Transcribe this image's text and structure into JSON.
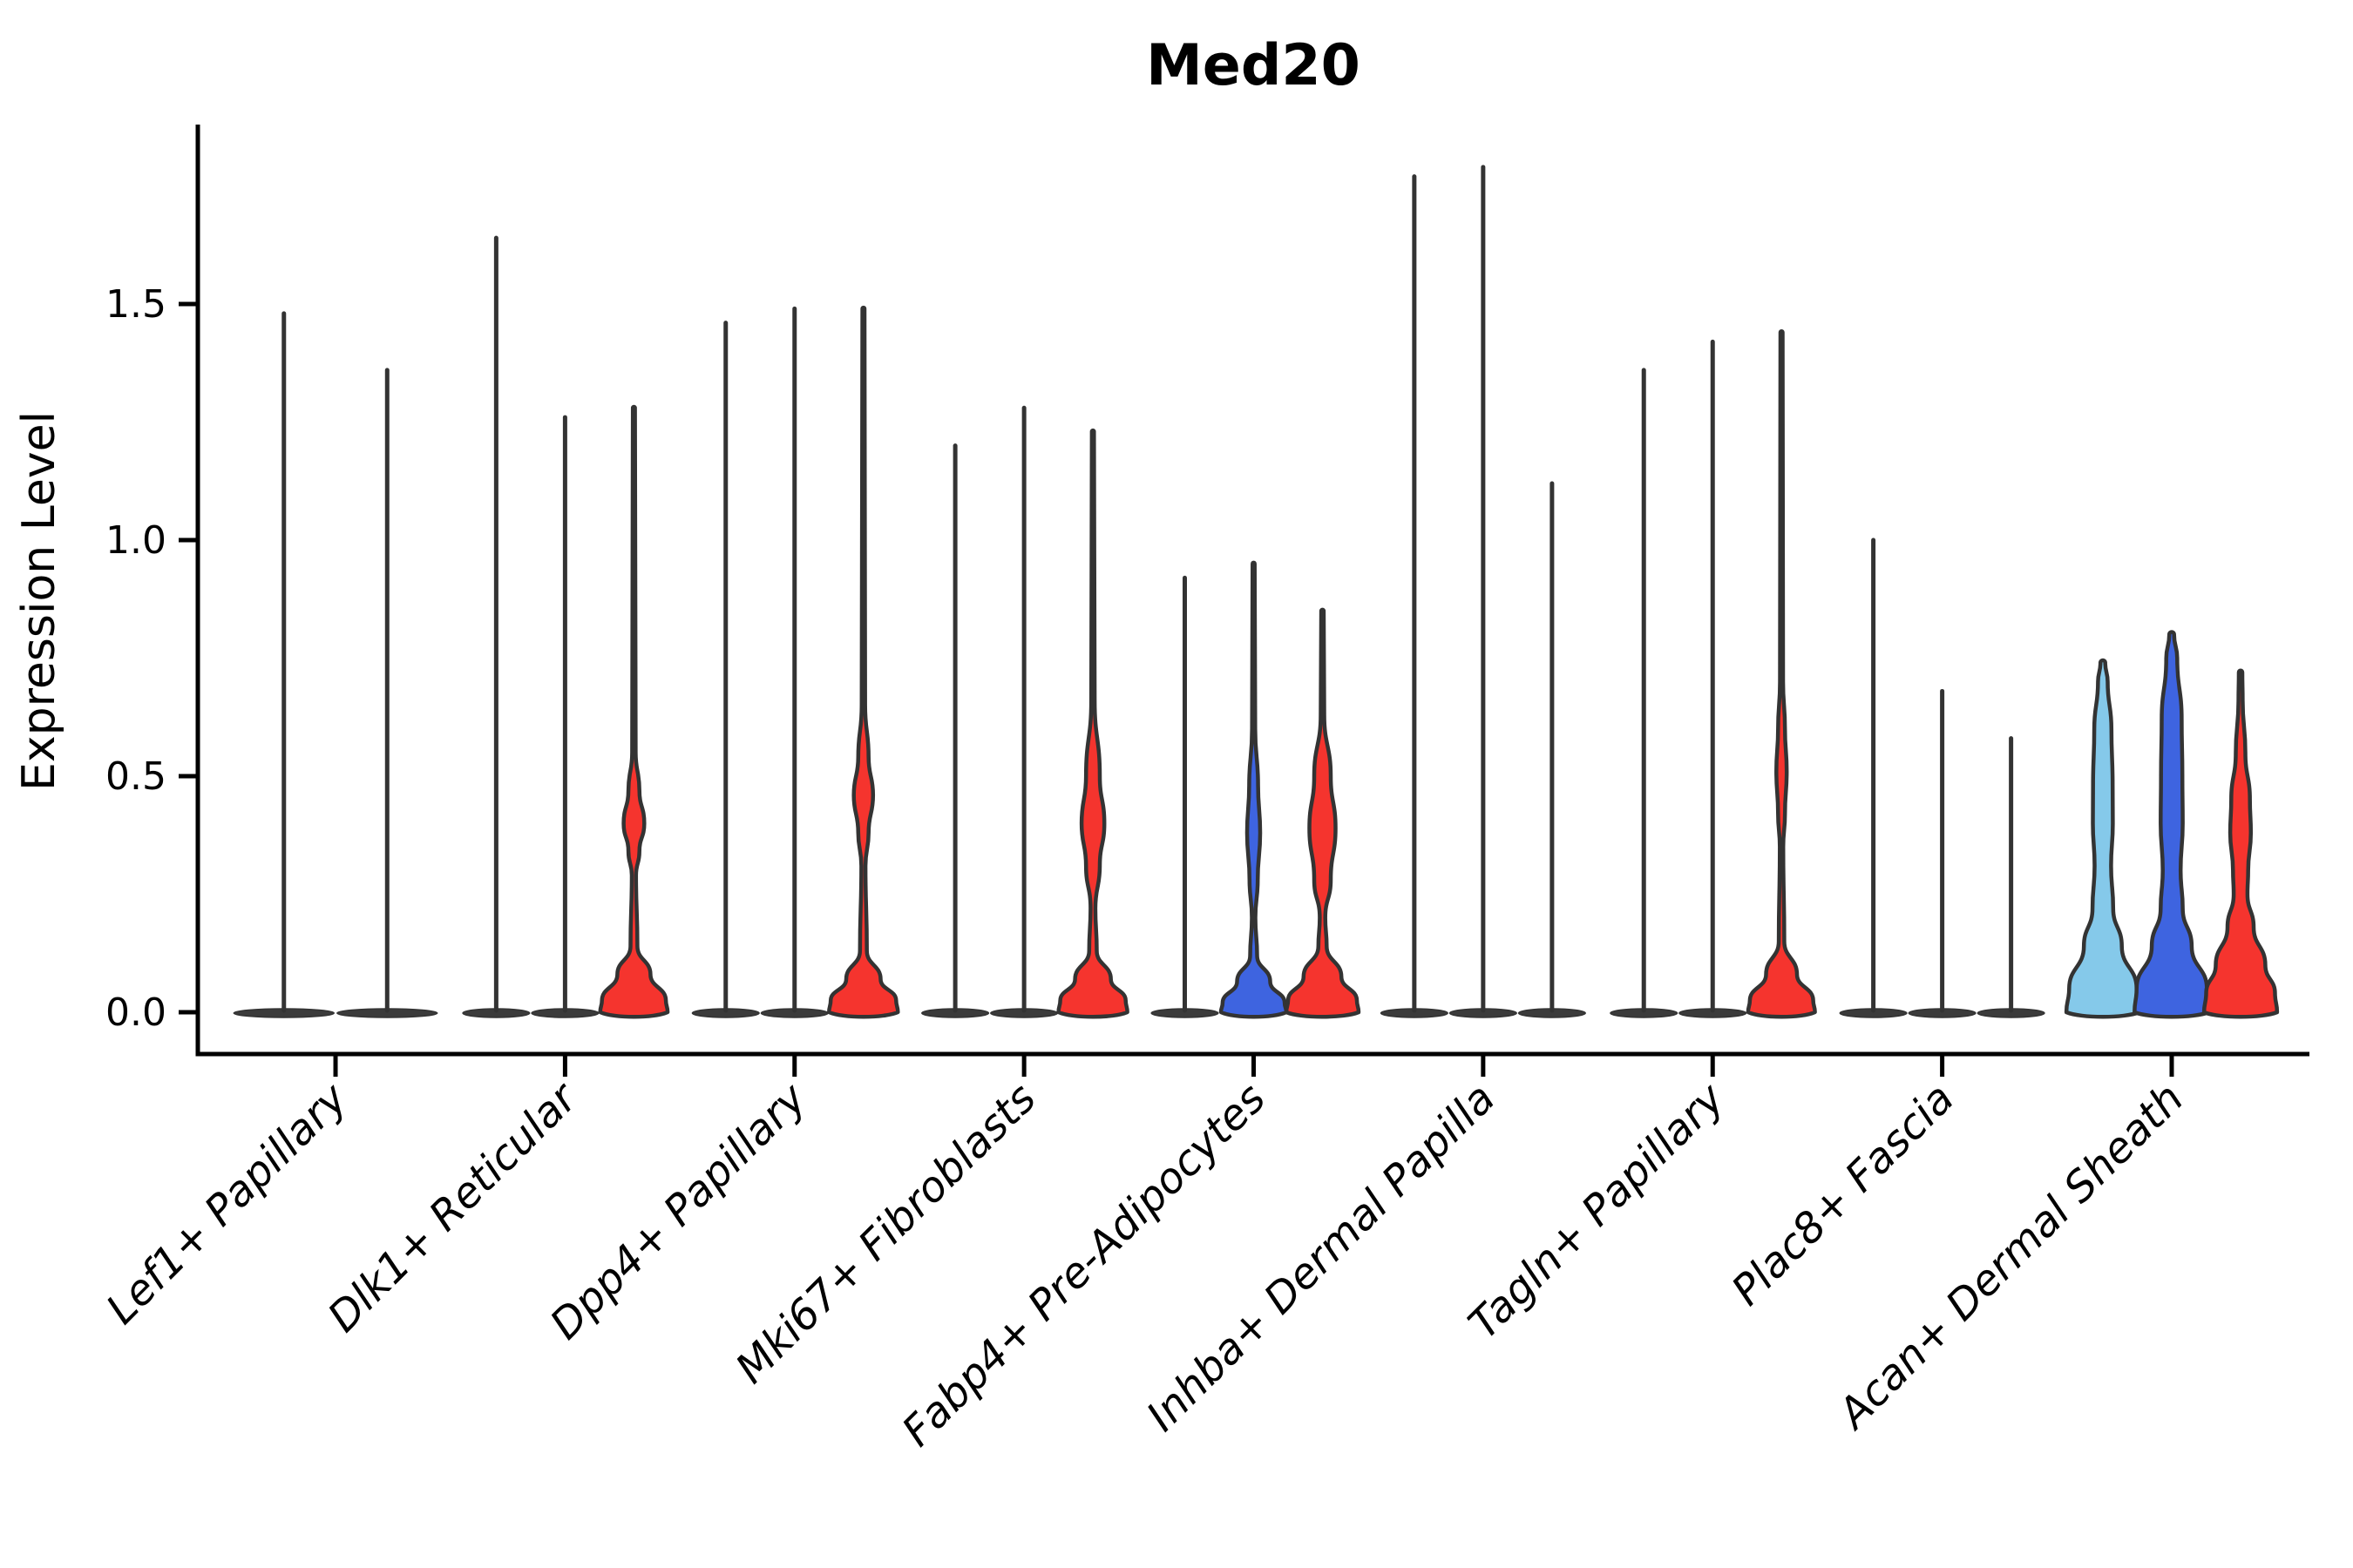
{
  "figure": {
    "title": "Med20",
    "ylabel": "Expression Level"
  },
  "colors": {
    "red": "#F5342E",
    "blue": "#3E64E0",
    "lightblue": "#85C9EA",
    "outline": "#333333",
    "spike": "#333333",
    "pancake": "#3B3B3B",
    "axis": "#000000",
    "background": "#FFFFFF"
  },
  "chart_data": {
    "type": "violin",
    "title": "Med20",
    "ylabel": "Expression Level",
    "xlabel": "",
    "ylim": [
      -0.08,
      1.88
    ],
    "yticks": [
      0.0,
      0.5,
      1.0,
      1.5
    ],
    "ytick_labels": [
      "0.0",
      "0.5",
      "1.0",
      "1.5"
    ],
    "grid": false,
    "legend_position": "none",
    "categories": [
      "Lef1+ Papillary",
      "Dlk1+ Reticular",
      "Dpp4+ Papillary",
      "Mki67+ Fibroblasts",
      "Fabp4+ Pre-Adipocytes",
      "Inhba+ Dermal Papilla",
      "Tagln+ Papillary",
      "Plac8+ Fascia",
      "Acan+ Dermal Sheath"
    ],
    "groups": [
      {
        "category": "Lef1+ Papillary",
        "violins": [
          {
            "fill": "none",
            "kind": "spike",
            "max": 1.48
          },
          {
            "fill": "none",
            "kind": "spike",
            "max": 1.36
          }
        ]
      },
      {
        "category": "Dlk1+ Reticular",
        "violins": [
          {
            "fill": "none",
            "kind": "spike",
            "max": 1.64
          },
          {
            "fill": "none",
            "kind": "spike",
            "max": 1.26
          },
          {
            "fill": "red",
            "kind": "body",
            "max": 1.28,
            "profile": [
              [
                1.28,
                0.03
              ],
              [
                0.55,
                0.05
              ],
              [
                0.47,
                0.16
              ],
              [
                0.4,
                0.3
              ],
              [
                0.34,
                0.16
              ],
              [
                0.29,
                0.06
              ],
              [
                0.14,
                0.1
              ],
              [
                0.08,
                0.48
              ],
              [
                0.025,
                0.93
              ],
              [
                0.0,
                0.98
              ]
            ]
          }
        ]
      },
      {
        "category": "Dpp4+ Papillary",
        "violins": [
          {
            "fill": "none",
            "kind": "spike",
            "max": 1.46
          },
          {
            "fill": "none",
            "kind": "spike",
            "max": 1.49
          },
          {
            "fill": "red",
            "kind": "body",
            "max": 1.49,
            "profile": [
              [
                1.49,
                0.03
              ],
              [
                0.65,
                0.05
              ],
              [
                0.54,
                0.15
              ],
              [
                0.46,
                0.28
              ],
              [
                0.38,
                0.15
              ],
              [
                0.31,
                0.06
              ],
              [
                0.13,
                0.1
              ],
              [
                0.07,
                0.5
              ],
              [
                0.025,
                0.95
              ],
              [
                0.0,
                1.0
              ]
            ]
          }
        ]
      },
      {
        "category": "Mki67+ Fibroblasts",
        "violins": [
          {
            "fill": "none",
            "kind": "spike",
            "max": 1.2
          },
          {
            "fill": "none",
            "kind": "spike",
            "max": 1.28
          },
          {
            "fill": "red",
            "kind": "body",
            "max": 1.23,
            "profile": [
              [
                1.23,
                0.03
              ],
              [
                0.66,
                0.05
              ],
              [
                0.5,
                0.2
              ],
              [
                0.4,
                0.33
              ],
              [
                0.31,
                0.2
              ],
              [
                0.22,
                0.07
              ],
              [
                0.13,
                0.11
              ],
              [
                0.07,
                0.52
              ],
              [
                0.025,
                0.95
              ],
              [
                0.0,
                1.0
              ]
            ]
          }
        ]
      },
      {
        "category": "Fabp4+ Pre-Adipocytes",
        "violins": [
          {
            "fill": "none",
            "kind": "spike",
            "max": 0.92
          },
          {
            "fill": "blue",
            "kind": "body",
            "max": 0.95,
            "profile": [
              [
                0.95,
                0.03
              ],
              [
                0.6,
                0.045
              ],
              [
                0.48,
                0.13
              ],
              [
                0.38,
                0.19
              ],
              [
                0.28,
                0.12
              ],
              [
                0.2,
                0.05
              ],
              [
                0.12,
                0.1
              ],
              [
                0.065,
                0.48
              ],
              [
                0.02,
                0.9
              ],
              [
                0.0,
                0.95
              ]
            ]
          },
          {
            "fill": "red",
            "kind": "body",
            "max": 0.85,
            "profile": [
              [
                0.85,
                0.035
              ],
              [
                0.63,
                0.05
              ],
              [
                0.5,
                0.24
              ],
              [
                0.39,
                0.38
              ],
              [
                0.28,
                0.24
              ],
              [
                0.2,
                0.08
              ],
              [
                0.14,
                0.12
              ],
              [
                0.075,
                0.55
              ],
              [
                0.025,
                1.0
              ],
              [
                0.0,
                1.05
              ]
            ]
          }
        ]
      },
      {
        "category": "Inhba+ Dermal Papilla",
        "violins": [
          {
            "fill": "none",
            "kind": "spike",
            "max": 1.77
          },
          {
            "fill": "none",
            "kind": "spike",
            "max": 1.79
          },
          {
            "fill": "none",
            "kind": "spike",
            "max": 1.12
          }
        ]
      },
      {
        "category": "Tagln+ Papillary",
        "violins": [
          {
            "fill": "none",
            "kind": "spike",
            "max": 1.36
          },
          {
            "fill": "none",
            "kind": "spike",
            "max": 1.42
          },
          {
            "fill": "red",
            "kind": "body",
            "max": 1.44,
            "profile": [
              [
                1.44,
                0.03
              ],
              [
                0.7,
                0.045
              ],
              [
                0.6,
                0.1
              ],
              [
                0.51,
                0.15
              ],
              [
                0.42,
                0.1
              ],
              [
                0.35,
                0.05
              ],
              [
                0.15,
                0.08
              ],
              [
                0.08,
                0.45
              ],
              [
                0.025,
                0.92
              ],
              [
                0.0,
                0.97
              ]
            ]
          }
        ]
      },
      {
        "category": "Plac8+ Fascia",
        "violins": [
          {
            "fill": "none",
            "kind": "spike",
            "max": 1.0
          },
          {
            "fill": "none",
            "kind": "spike",
            "max": 0.68
          },
          {
            "fill": "none",
            "kind": "spike",
            "max": 0.58
          }
        ]
      },
      {
        "category": "Acan+ Dermal Sheath",
        "violins": [
          {
            "fill": "lightblue",
            "kind": "body",
            "max": 0.74,
            "profile": [
              [
                0.74,
                0.07
              ],
              [
                0.7,
                0.14
              ],
              [
                0.6,
                0.25
              ],
              [
                0.48,
                0.285
              ],
              [
                0.4,
                0.29
              ],
              [
                0.31,
                0.24
              ],
              [
                0.22,
                0.3
              ],
              [
                0.14,
                0.55
              ],
              [
                0.05,
                0.98
              ],
              [
                0.0,
                1.06
              ]
            ]
          },
          {
            "fill": "blue",
            "kind": "body",
            "max": 0.8,
            "profile": [
              [
                0.8,
                0.07
              ],
              [
                0.75,
                0.16
              ],
              [
                0.62,
                0.29
              ],
              [
                0.5,
                0.31
              ],
              [
                0.4,
                0.32
              ],
              [
                0.3,
                0.26
              ],
              [
                0.22,
                0.32
              ],
              [
                0.14,
                0.58
              ],
              [
                0.05,
                1.02
              ],
              [
                0.0,
                1.08
              ]
            ]
          },
          {
            "fill": "red",
            "kind": "body",
            "max": 0.72,
            "profile": [
              [
                0.72,
                0.05
              ],
              [
                0.66,
                0.06
              ],
              [
                0.55,
                0.14
              ],
              [
                0.45,
                0.27
              ],
              [
                0.38,
                0.3
              ],
              [
                0.3,
                0.22
              ],
              [
                0.25,
                0.2
              ],
              [
                0.18,
                0.38
              ],
              [
                0.1,
                0.72
              ],
              [
                0.04,
                1.0
              ],
              [
                0.0,
                1.06
              ]
            ]
          }
        ]
      }
    ]
  }
}
